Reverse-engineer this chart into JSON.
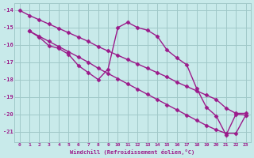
{
  "background_color": "#c8eaea",
  "grid_color": "#a0c8c8",
  "line_color": "#9b1a8a",
  "marker": "D",
  "markersize": 2.5,
  "linewidth": 1.0,
  "xlabel": "Windchill (Refroidissement éolien,°C)",
  "xlim": [
    -0.5,
    23.5
  ],
  "ylim": [
    -21.6,
    -13.6
  ],
  "x_ticks": [
    0,
    1,
    2,
    3,
    4,
    5,
    6,
    7,
    8,
    9,
    10,
    11,
    12,
    13,
    14,
    15,
    16,
    17,
    18,
    19,
    20,
    21,
    22,
    23
  ],
  "y_ticks": [
    -14,
    -15,
    -16,
    -17,
    -18,
    -19,
    -20,
    -21
  ],
  "line1_x": [
    0,
    1,
    2,
    3,
    4,
    5,
    6,
    7,
    8,
    9,
    10,
    11,
    12,
    13,
    14,
    15,
    16,
    17,
    18,
    19,
    20,
    21,
    22,
    23
  ],
  "line1_y": [
    -14.0,
    -14.3,
    -14.55,
    -14.8,
    -15.05,
    -15.3,
    -15.55,
    -15.8,
    -16.1,
    -16.35,
    -16.6,
    -16.85,
    -17.1,
    -17.35,
    -17.6,
    -17.85,
    -18.15,
    -18.4,
    -18.65,
    -18.9,
    -19.15,
    -19.65,
    -19.95,
    -19.95
  ],
  "line2_x": [
    1,
    2,
    3,
    4,
    5,
    6,
    7,
    8,
    9,
    10,
    11,
    12,
    13,
    14,
    15,
    16,
    17,
    18,
    19,
    20,
    21,
    22,
    23
  ],
  "line2_y": [
    -15.2,
    -15.5,
    -15.8,
    -16.1,
    -16.4,
    -16.7,
    -17.0,
    -17.35,
    -17.65,
    -17.95,
    -18.25,
    -18.55,
    -18.85,
    -19.15,
    -19.45,
    -19.75,
    -20.05,
    -20.35,
    -20.65,
    -20.9,
    -21.1,
    -21.1,
    -20.05
  ],
  "line3_x": [
    1,
    2,
    3,
    4,
    5,
    6,
    7,
    8,
    9,
    10,
    11,
    12,
    13,
    14,
    15,
    16,
    17,
    18,
    19,
    20,
    21,
    22,
    23
  ],
  "line3_y": [
    -15.2,
    -15.55,
    -16.05,
    -16.2,
    -16.55,
    -17.2,
    -17.6,
    -18.0,
    -17.4,
    -15.0,
    -14.7,
    -15.0,
    -15.15,
    -15.5,
    -16.3,
    -16.75,
    -17.15,
    -18.5,
    -19.6,
    -20.1,
    -21.2,
    -20.0,
    -20.05
  ]
}
